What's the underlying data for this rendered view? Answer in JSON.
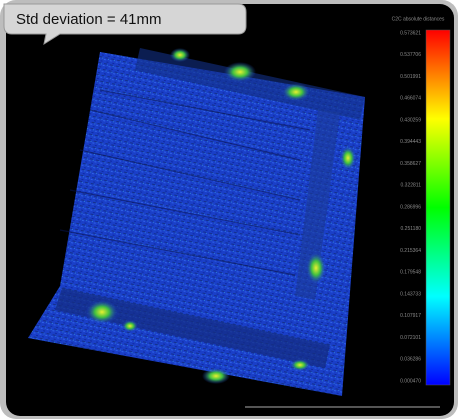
{
  "callout": {
    "text": "Std deviation = 41mm"
  },
  "colorbar": {
    "title": "C2C absolute distances",
    "labels": [
      "0.573621",
      "0.537706",
      "0.501991",
      "0.466074",
      "0.430259",
      "0.394443",
      "0.358627",
      "0.322811",
      "0.286996",
      "0.251180",
      "0.215364",
      "0.179548",
      "0.143733",
      "0.107917",
      "0.072101",
      "0.036286",
      "0.000470"
    ]
  }
}
